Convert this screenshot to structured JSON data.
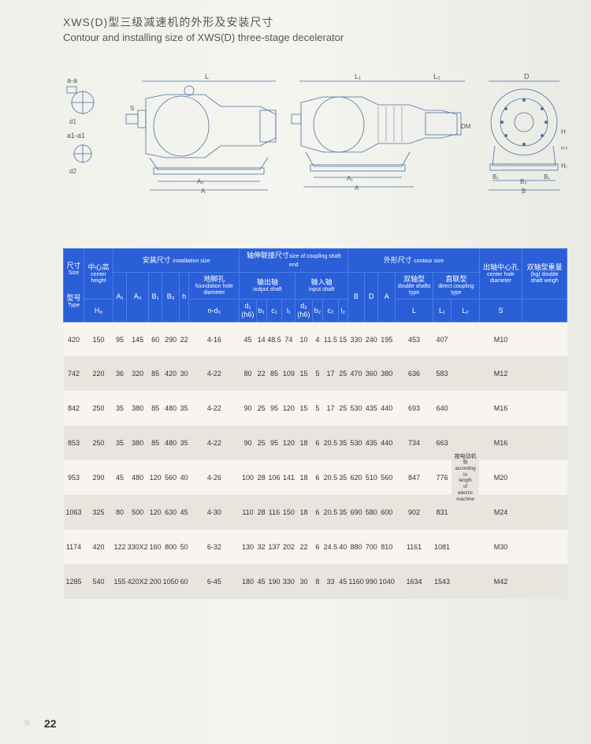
{
  "title_cn": "XWS(D)型三级减速机的外形及安装尺寸",
  "title_en": "Contour and installing size of XWS(D) three-stage decelerator",
  "page_number": "22",
  "diagram_labels": [
    "a-a",
    "b1",
    "d1",
    "a1-a1",
    "d2",
    "c₁",
    "c₂",
    "S",
    "l₁",
    "a",
    "a₁",
    "L",
    "A₀",
    "A",
    "L₁",
    "L₂",
    "A₁",
    "l₂",
    "D",
    "DM",
    "B₁",
    "B₀",
    "B",
    "n-d₀",
    "H",
    "H₀"
  ],
  "table": {
    "header_groups": {
      "size": {
        "cn": "尺寸",
        "en": "Size"
      },
      "type": {
        "cn": "型号",
        "en": "Type"
      },
      "center_height": {
        "cn": "中心高",
        "en": "center height"
      },
      "install": {
        "cn": "安装尺寸",
        "en": "installation size"
      },
      "coupling": {
        "cn": "轴伸联接尺寸",
        "en": "size of coupling shaft end"
      },
      "contour": {
        "cn": "外形尺寸",
        "en": "contour size"
      },
      "center_hole": {
        "cn": "出轴中心孔",
        "en": "center hole diameter"
      },
      "double_weight": {
        "cn": "双轴型重量",
        "en": "(kg) double shaft weigh"
      },
      "foundation": {
        "cn": "地脚孔",
        "en": "foundation hole diameter"
      },
      "output_shaft": {
        "cn": "输出轴",
        "en": "output shaft"
      },
      "input_shaft": {
        "cn": "输入轴",
        "en": "input shaft"
      },
      "double_shaft": {
        "cn": "双轴型",
        "en": "double shafts type"
      },
      "direct_coupling": {
        "cn": "直联型",
        "en": "direct coupling type"
      }
    },
    "columns": [
      "H₀",
      "A₁",
      "A₀",
      "B₁",
      "B₀",
      "h",
      "n-d₀",
      "d₁(h6)",
      "b₁",
      "c₁",
      "l₁",
      "d₂(h6)",
      "b₂",
      "c₂",
      "l₂",
      "B",
      "D",
      "A",
      "L",
      "L₁",
      "L₂",
      "S"
    ],
    "note_l2": {
      "cn": "按电动机长",
      "en": "according to length of electric machine"
    },
    "rows": [
      {
        "type": "420",
        "H0": "150",
        "A1": "95",
        "A0": "145",
        "B1": "60",
        "B0": "290",
        "h": "22",
        "nd0": "4-16",
        "d1": "45",
        "b1": "14",
        "c1": "48.5",
        "l1": "74",
        "d2": "10",
        "b2": "4",
        "c2": "11.5",
        "l2": "15",
        "B": "330",
        "D": "240",
        "A": "195",
        "L": "453",
        "L1": "407",
        "L2": "",
        "S": "M10"
      },
      {
        "type": "742",
        "H0": "220",
        "A1": "36",
        "A0": "320",
        "B1": "85",
        "B0": "420",
        "h": "30",
        "nd0": "4-22",
        "d1": "80",
        "b1": "22",
        "c1": "85",
        "l1": "109",
        "d2": "15",
        "b2": "5",
        "c2": "17",
        "l2": "25",
        "B": "470",
        "D": "360",
        "A": "380",
        "L": "636",
        "L1": "583",
        "L2": "",
        "S": "M12"
      },
      {
        "type": "842",
        "H0": "250",
        "A1": "35",
        "A0": "380",
        "B1": "85",
        "B0": "480",
        "h": "35",
        "nd0": "4-22",
        "d1": "90",
        "b1": "25",
        "c1": "95",
        "l1": "120",
        "d2": "15",
        "b2": "5",
        "c2": "17",
        "l2": "25",
        "B": "530",
        "D": "435",
        "A": "440",
        "L": "693",
        "L1": "640",
        "L2": "",
        "S": "M16"
      },
      {
        "type": "853",
        "H0": "250",
        "A1": "35",
        "A0": "380",
        "B1": "85",
        "B0": "480",
        "h": "35",
        "nd0": "4-22",
        "d1": "90",
        "b1": "25",
        "c1": "95",
        "l1": "120",
        "d2": "18",
        "b2": "6",
        "c2": "20.5",
        "l2": "35",
        "B": "530",
        "D": "435",
        "A": "440",
        "L": "734",
        "L1": "663",
        "L2": "note",
        "S": "M16"
      },
      {
        "type": "953",
        "H0": "290",
        "A1": "45",
        "A0": "480",
        "B1": "120",
        "B0": "560",
        "h": "40",
        "nd0": "4-26",
        "d1": "100",
        "b1": "28",
        "c1": "106",
        "l1": "141",
        "d2": "18",
        "b2": "6",
        "c2": "20.5",
        "l2": "35",
        "B": "620",
        "D": "510",
        "A": "560",
        "L": "847",
        "L1": "776",
        "L2": "",
        "S": "M20"
      },
      {
        "type": "1063",
        "H0": "325",
        "A1": "80",
        "A0": "500",
        "B1": "120",
        "B0": "630",
        "h": "45",
        "nd0": "4-30",
        "d1": "110",
        "b1": "28",
        "c1": "116",
        "l1": "150",
        "d2": "18",
        "b2": "6",
        "c2": "20.5",
        "l2": "35",
        "B": "690",
        "D": "580",
        "A": "600",
        "L": "902",
        "L1": "831",
        "L2": "",
        "S": "M24"
      },
      {
        "type": "1174",
        "H0": "420",
        "A1": "122",
        "A0": "330X2",
        "B1": "160",
        "B0": "800",
        "h": "50",
        "nd0": "6-32",
        "d1": "130",
        "b1": "32",
        "c1": "137",
        "l1": "202",
        "d2": "22",
        "b2": "6",
        "c2": "24.5",
        "l2": "40",
        "B": "880",
        "D": "700",
        "A": "810",
        "L": "1161",
        "L1": "1081",
        "L2": "",
        "S": "M30"
      },
      {
        "type": "1285",
        "H0": "540",
        "A1": "155",
        "A0": "420X2",
        "B1": "200",
        "B0": "1050",
        "h": "60",
        "nd0": "6-45",
        "d1": "180",
        "b1": "45",
        "c1": "190",
        "l1": "330",
        "d2": "30",
        "b2": "8",
        "c2": "33",
        "l2": "45",
        "B": "1160",
        "D": "990",
        "A": "1040",
        "L": "1634",
        "L1": "1543",
        "L2": "",
        "S": "M42"
      }
    ]
  }
}
